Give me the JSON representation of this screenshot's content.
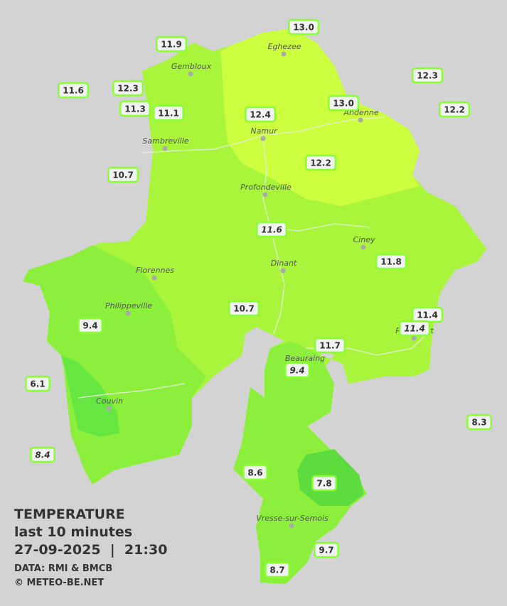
{
  "title": "TEMPERATURE",
  "subtitle": "last 10 minutes",
  "datetime": "27-09-2025  |  21:30",
  "source": "DATA: RMI & BMCB",
  "copyright": "© METEO-BE.NET",
  "cities": [
    {
      "name": "Eghezee"
    },
    {
      "name": "Gembloux"
    },
    {
      "name": "Andenne"
    },
    {
      "name": "Namur"
    },
    {
      "name": "Sambreville"
    },
    {
      "name": "Profondeville"
    },
    {
      "name": "Ciney"
    },
    {
      "name": "Dinant"
    },
    {
      "name": "Florennes"
    },
    {
      "name": "Philippeville"
    },
    {
      "name": "Rochefort"
    },
    {
      "name": "Beauraing"
    },
    {
      "name": "Couvin"
    },
    {
      "name": "Vresse-sur-Semois"
    }
  ],
  "stations": [
    {
      "value": "13.0"
    },
    {
      "value": "11.9"
    },
    {
      "value": "12.3"
    },
    {
      "value": "11.6"
    },
    {
      "value": "12.3"
    },
    {
      "value": "11.3"
    },
    {
      "value": "11.1"
    },
    {
      "value": "12.4"
    },
    {
      "value": "13.0"
    },
    {
      "value": "12.2"
    },
    {
      "value": "12.2"
    },
    {
      "value": "10.7"
    },
    {
      "value": "11.6",
      "italic": true
    },
    {
      "value": "11.8"
    },
    {
      "value": "10.7"
    },
    {
      "value": "11.4"
    },
    {
      "value": "11.4",
      "italic": true
    },
    {
      "value": "9.4"
    },
    {
      "value": "11.7"
    },
    {
      "value": "9.4",
      "italic": true
    },
    {
      "value": "6.1"
    },
    {
      "value": "8.3"
    },
    {
      "value": "8.4",
      "italic": true
    },
    {
      "value": "8.6"
    },
    {
      "value": "7.8"
    },
    {
      "value": "9.7"
    },
    {
      "value": "8.7"
    }
  ]
}
